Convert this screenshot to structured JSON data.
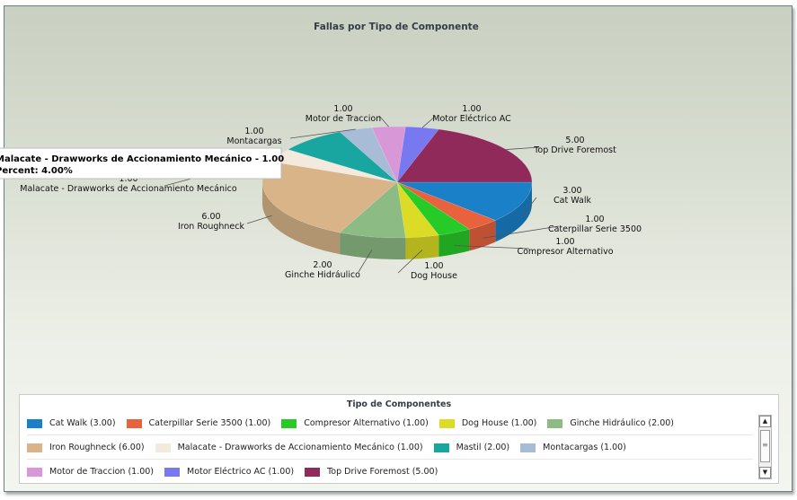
{
  "chart_data": {
    "type": "pie",
    "title": "Fallas por Tipo de Componente",
    "slices": [
      {
        "name": "Cat Walk",
        "value": 3.0,
        "value_label": "3.00",
        "color": "#1a80c8"
      },
      {
        "name": "Caterpillar Serie 3500",
        "value": 1.0,
        "value_label": "1.00",
        "color": "#e8633d"
      },
      {
        "name": "Compresor Alternativo",
        "value": 1.0,
        "value_label": "1.00",
        "color": "#27cb27"
      },
      {
        "name": "Dog House",
        "value": 1.0,
        "value_label": "1.00",
        "color": "#dcdc26"
      },
      {
        "name": "Ginche Hidráulico",
        "value": 2.0,
        "value_label": "2.00",
        "color": "#8cbb84"
      },
      {
        "name": "Iron Roughneck",
        "value": 6.0,
        "value_label": "6.00",
        "color": "#d8b488"
      },
      {
        "name": "Malacate - Drawworks de Accionamiento Mecánico",
        "value": 1.0,
        "value_label": "1.00",
        "color": "#f3e9dc"
      },
      {
        "name": "Mastil",
        "value": 2.0,
        "value_label": "2.00",
        "color": "#1aa6a0"
      },
      {
        "name": "Montacargas",
        "value": 1.0,
        "value_label": "1.00",
        "color": "#a8bcd8"
      },
      {
        "name": "Motor de Traccion",
        "value": 1.0,
        "value_label": "1.00",
        "color": "#d898d8"
      },
      {
        "name": "Motor Eléctrico AC",
        "value": 1.0,
        "value_label": "1.00",
        "color": "#7878f0"
      },
      {
        "name": "Top Drive Foremost",
        "value": 5.0,
        "value_label": "5.00",
        "color": "#902a5a"
      }
    ],
    "tooltip": {
      "line1": "Malacate - Drawworks de Accionamiento Mecánico - 1.00",
      "line2": "Percent: 4.00%"
    }
  },
  "legend": {
    "title": "Tipo de Componentes",
    "items": [
      "Cat Walk (3.00)",
      "Caterpillar Serie 3500 (1.00)",
      "Compresor Alternativo (1.00)",
      "Dog House (1.00)",
      "Ginche Hidráulico (2.00)",
      "Iron Roughneck (6.00)",
      "Malacate - Drawworks de Accionamiento Mecánico (1.00)",
      "Mastil (2.00)",
      "Montacargas (1.00)",
      "Motor de Traccion (1.00)",
      "Motor Eléctrico AC (1.00)",
      "Top Drive Foremost (5.00)"
    ]
  },
  "scrollbar": {
    "up_icon": "arrow-up-icon",
    "down_icon": "arrow-down-icon",
    "grip_icon": "grip-icon"
  }
}
